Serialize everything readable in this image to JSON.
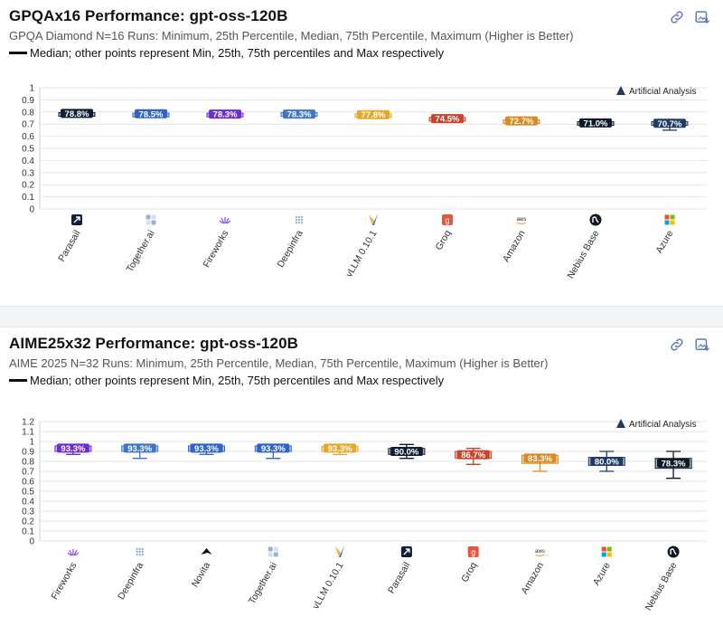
{
  "colors": {
    "parasail": "#0f1f3a",
    "together": "#2f63c8",
    "fireworks": "#6b2fd4",
    "deepinfra": "#3f76c9",
    "vllm": "#e4a92a",
    "groq": "#c8452c",
    "amazon": "#d98a23",
    "nebius": "#101828",
    "azure": "#1f3b66",
    "novita": "#111111"
  },
  "watermark": "Artificial Analysis",
  "legend": "Median; other points represent Min, 25th, 75th percentiles and Max respectively",
  "chart_data": [
    {
      "type": "box",
      "title": "GPQAx16 Performance: gpt-oss-120B",
      "subtitle": "GPQA Diamond N=16 Runs: Minimum, 25th Percentile, Median, 75th Percentile, Maximum (Higher is Better)",
      "ylim": [
        0,
        1
      ],
      "yticks": [
        "0",
        "0.1",
        "0.2",
        "0.3",
        "0.4",
        "0.5",
        "0.6",
        "0.7",
        "0.8",
        "0.9",
        "1"
      ],
      "grid": true,
      "categories": [
        "Parasail",
        "Together.ai",
        "Fireworks",
        "Deepinfra",
        "vLLM 0.10.1",
        "Groq",
        "Amazon",
        "Nebius Base",
        "Azure"
      ],
      "series": [
        {
          "min": 0.775,
          "q1": 0.78,
          "median": 0.788,
          "q3": 0.795,
          "max": 0.8,
          "label": "78.8%",
          "color": "parasail",
          "icon": "parasail-icon"
        },
        {
          "min": 0.775,
          "q1": 0.78,
          "median": 0.785,
          "q3": 0.79,
          "max": 0.795,
          "label": "78.5%",
          "color": "together",
          "icon": "together-icon"
        },
        {
          "min": 0.765,
          "q1": 0.775,
          "median": 0.783,
          "q3": 0.79,
          "max": 0.8,
          "label": "78.3%",
          "color": "fireworks",
          "icon": "fireworks-icon"
        },
        {
          "min": 0.765,
          "q1": 0.77,
          "median": 0.783,
          "q3": 0.795,
          "max": 0.8,
          "label": "78.3%",
          "color": "deepinfra",
          "icon": "deepinfra-icon"
        },
        {
          "min": 0.765,
          "q1": 0.775,
          "median": 0.778,
          "q3": 0.785,
          "max": 0.79,
          "label": "77.8%",
          "color": "vllm",
          "icon": "vllm-icon"
        },
        {
          "min": 0.725,
          "q1": 0.735,
          "median": 0.745,
          "q3": 0.755,
          "max": 0.76,
          "label": "74.5%",
          "color": "groq",
          "icon": "groq-icon"
        },
        {
          "min": 0.71,
          "q1": 0.72,
          "median": 0.727,
          "q3": 0.735,
          "max": 0.74,
          "label": "72.7%",
          "color": "amazon",
          "icon": "amazon-icon"
        },
        {
          "min": 0.69,
          "q1": 0.7,
          "median": 0.71,
          "q3": 0.72,
          "max": 0.725,
          "label": "71.0%",
          "color": "nebius",
          "icon": "nebius-icon"
        },
        {
          "min": 0.65,
          "q1": 0.695,
          "median": 0.707,
          "q3": 0.72,
          "max": 0.73,
          "label": "70.7%",
          "color": "azure",
          "icon": "azure-icon"
        }
      ]
    },
    {
      "type": "box",
      "title": "AIME25x32 Performance: gpt-oss-120B",
      "subtitle": "AIME 2025 N=32 Runs: Minimum, 25th Percentile, Median, 75th Percentile, Maximum (Higher is Better)",
      "ylim": [
        0,
        1.2
      ],
      "yticks": [
        "0",
        "0.1",
        "0.2",
        "0.3",
        "0.4",
        "0.5",
        "0.6",
        "0.7",
        "0.8",
        "0.9",
        "1",
        "1.1",
        "1.2"
      ],
      "grid": true,
      "categories": [
        "Fireworks",
        "Deepinfra",
        "Novita",
        "Together.ai",
        "vLLM 0.10.1",
        "Parasail",
        "Groq",
        "Amazon",
        "Azure",
        "Nebius Base"
      ],
      "series": [
        {
          "min": 0.87,
          "q1": 0.9,
          "median": 0.933,
          "q3": 0.955,
          "max": 0.97,
          "label": "93.3%",
          "color": "fireworks",
          "icon": "fireworks-icon"
        },
        {
          "min": 0.83,
          "q1": 0.9,
          "median": 0.933,
          "q3": 0.955,
          "max": 0.97,
          "label": "93.3%",
          "color": "deepinfra",
          "icon": "deepinfra-icon"
        },
        {
          "min": 0.87,
          "q1": 0.9,
          "median": 0.933,
          "q3": 0.955,
          "max": 0.97,
          "label": "93.3%",
          "color": "together",
          "icon": "novita-icon"
        },
        {
          "min": 0.83,
          "q1": 0.9,
          "median": 0.933,
          "q3": 0.955,
          "max": 0.97,
          "label": "93.3%",
          "color": "together",
          "icon": "together-icon"
        },
        {
          "min": 0.87,
          "q1": 0.9,
          "median": 0.933,
          "q3": 0.95,
          "max": 0.97,
          "label": "93.3%",
          "color": "vllm",
          "icon": "vllm-icon"
        },
        {
          "min": 0.83,
          "q1": 0.87,
          "median": 0.9,
          "q3": 0.93,
          "max": 0.97,
          "label": "90.0%",
          "color": "parasail",
          "icon": "parasail-icon"
        },
        {
          "min": 0.77,
          "q1": 0.83,
          "median": 0.867,
          "q3": 0.9,
          "max": 0.93,
          "label": "86.7%",
          "color": "groq",
          "icon": "groq-icon"
        },
        {
          "min": 0.7,
          "q1": 0.78,
          "median": 0.833,
          "q3": 0.86,
          "max": 0.87,
          "label": "83.3%",
          "color": "amazon",
          "icon": "amazon-icon"
        },
        {
          "min": 0.7,
          "q1": 0.76,
          "median": 0.8,
          "q3": 0.84,
          "max": 0.9,
          "label": "80.0%",
          "color": "azure",
          "icon": "azure-icon"
        },
        {
          "min": 0.63,
          "q1": 0.73,
          "median": 0.783,
          "q3": 0.83,
          "max": 0.9,
          "label": "78.3%",
          "color": "nebius",
          "icon": "nebius-icon"
        }
      ]
    }
  ]
}
